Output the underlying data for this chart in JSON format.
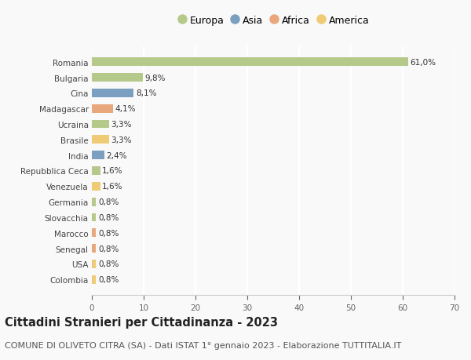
{
  "categories": [
    "Colombia",
    "USA",
    "Senegal",
    "Marocco",
    "Slovacchia",
    "Germania",
    "Venezuela",
    "Repubblica Ceca",
    "India",
    "Brasile",
    "Ucraina",
    "Madagascar",
    "Cina",
    "Bulgaria",
    "Romania"
  ],
  "values": [
    0.8,
    0.8,
    0.8,
    0.8,
    0.8,
    0.8,
    1.6,
    1.6,
    2.4,
    3.3,
    3.3,
    4.1,
    8.1,
    9.8,
    61.0
  ],
  "labels": [
    "0,8%",
    "0,8%",
    "0,8%",
    "0,8%",
    "0,8%",
    "0,8%",
    "1,6%",
    "1,6%",
    "2,4%",
    "3,3%",
    "3,3%",
    "4,1%",
    "8,1%",
    "9,8%",
    "61,0%"
  ],
  "continents": [
    "America",
    "America",
    "Africa",
    "Africa",
    "Europa",
    "Europa",
    "America",
    "Europa",
    "Asia",
    "America",
    "Europa",
    "Africa",
    "Asia",
    "Europa",
    "Europa"
  ],
  "continent_colors": {
    "Europa": "#b5c98a",
    "Asia": "#7a9fc0",
    "Africa": "#e8a87c",
    "America": "#f0cb76"
  },
  "legend_order": [
    "Europa",
    "Asia",
    "Africa",
    "America"
  ],
  "xlim": [
    0,
    70
  ],
  "xticks": [
    0,
    10,
    20,
    30,
    40,
    50,
    60,
    70
  ],
  "title": "Cittadini Stranieri per Cittadinanza - 2023",
  "subtitle": "COMUNE DI OLIVETO CITRA (SA) - Dati ISTAT 1° gennaio 2023 - Elaborazione TUTTITALIA.IT",
  "background_color": "#f9f9f9",
  "grid_color": "#ffffff",
  "bar_height": 0.55,
  "title_fontsize": 10.5,
  "subtitle_fontsize": 8,
  "label_fontsize": 7.5,
  "tick_fontsize": 7.5,
  "legend_fontsize": 9
}
